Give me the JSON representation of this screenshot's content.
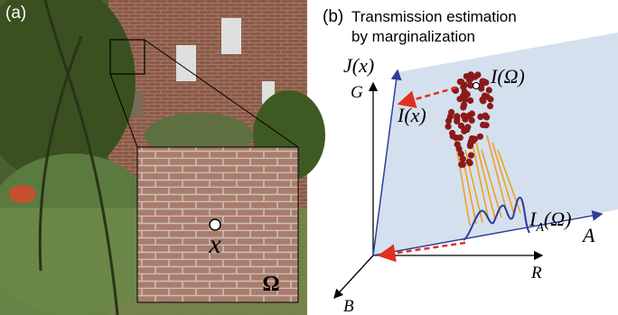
{
  "panel_a": {
    "label": "(a)",
    "point_label": "x",
    "region_label": "Ω"
  },
  "panel_b": {
    "label": "(b)",
    "title_lines": [
      "Transmission estimation",
      "by marginalization"
    ],
    "labels": {
      "j_axis": "J(x)",
      "g_axis": "G",
      "pixel": "I(x)",
      "patch": "I(Ω)",
      "projection": {
        "main": "I",
        "sub": "A",
        "rest": "(Ω)"
      },
      "a_axis": "A",
      "r_axis": "R",
      "b_axis": "B"
    }
  }
}
